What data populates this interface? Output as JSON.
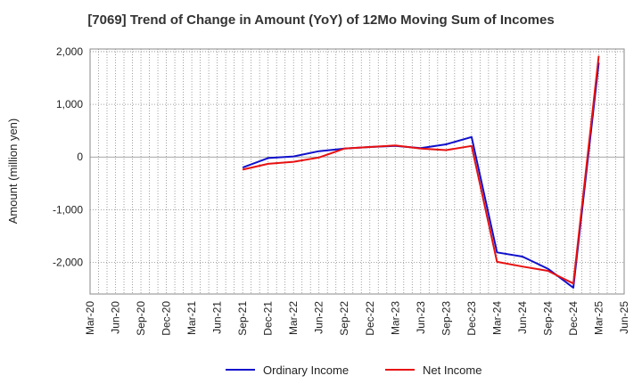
{
  "chart_data": {
    "type": "line",
    "title": "[7069]  Trend of Change in Amount (YoY) of 12Mo Moving Sum of Incomes",
    "ylabel": "Amount (million yen)",
    "xlabel": "",
    "ylim": [
      -2600,
      2050
    ],
    "yticks": [
      2000,
      1000,
      0,
      -1000,
      -2000
    ],
    "ytick_labels": [
      "2,000",
      "1,000",
      "0",
      "-1,000",
      "-2,000"
    ],
    "categories": [
      "Mar-20",
      "Jun-20",
      "Sep-20",
      "Dec-20",
      "Mar-21",
      "Jun-21",
      "Sep-21",
      "Dec-21",
      "Mar-22",
      "Jun-22",
      "Sep-22",
      "Dec-22",
      "Mar-23",
      "Jun-23",
      "Sep-23",
      "Dec-23",
      "Mar-24",
      "Jun-24",
      "Sep-24",
      "Dec-24",
      "Mar-25",
      "Jun-25"
    ],
    "grid": true,
    "legend_position": "bottom",
    "series": [
      {
        "name": "Ordinary Income",
        "color": "#1010cc",
        "values": [
          null,
          null,
          null,
          null,
          null,
          null,
          -200,
          -20,
          10,
          110,
          160,
          190,
          210,
          170,
          240,
          380,
          -1810,
          -1890,
          -2120,
          -2480,
          1790,
          null
        ]
      },
      {
        "name": "Net Income",
        "color": "#e81010",
        "values": [
          null,
          null,
          null,
          null,
          null,
          null,
          -240,
          -130,
          -90,
          -10,
          160,
          190,
          220,
          160,
          130,
          210,
          -1990,
          -2080,
          -2160,
          -2400,
          1920,
          null
        ]
      }
    ]
  }
}
